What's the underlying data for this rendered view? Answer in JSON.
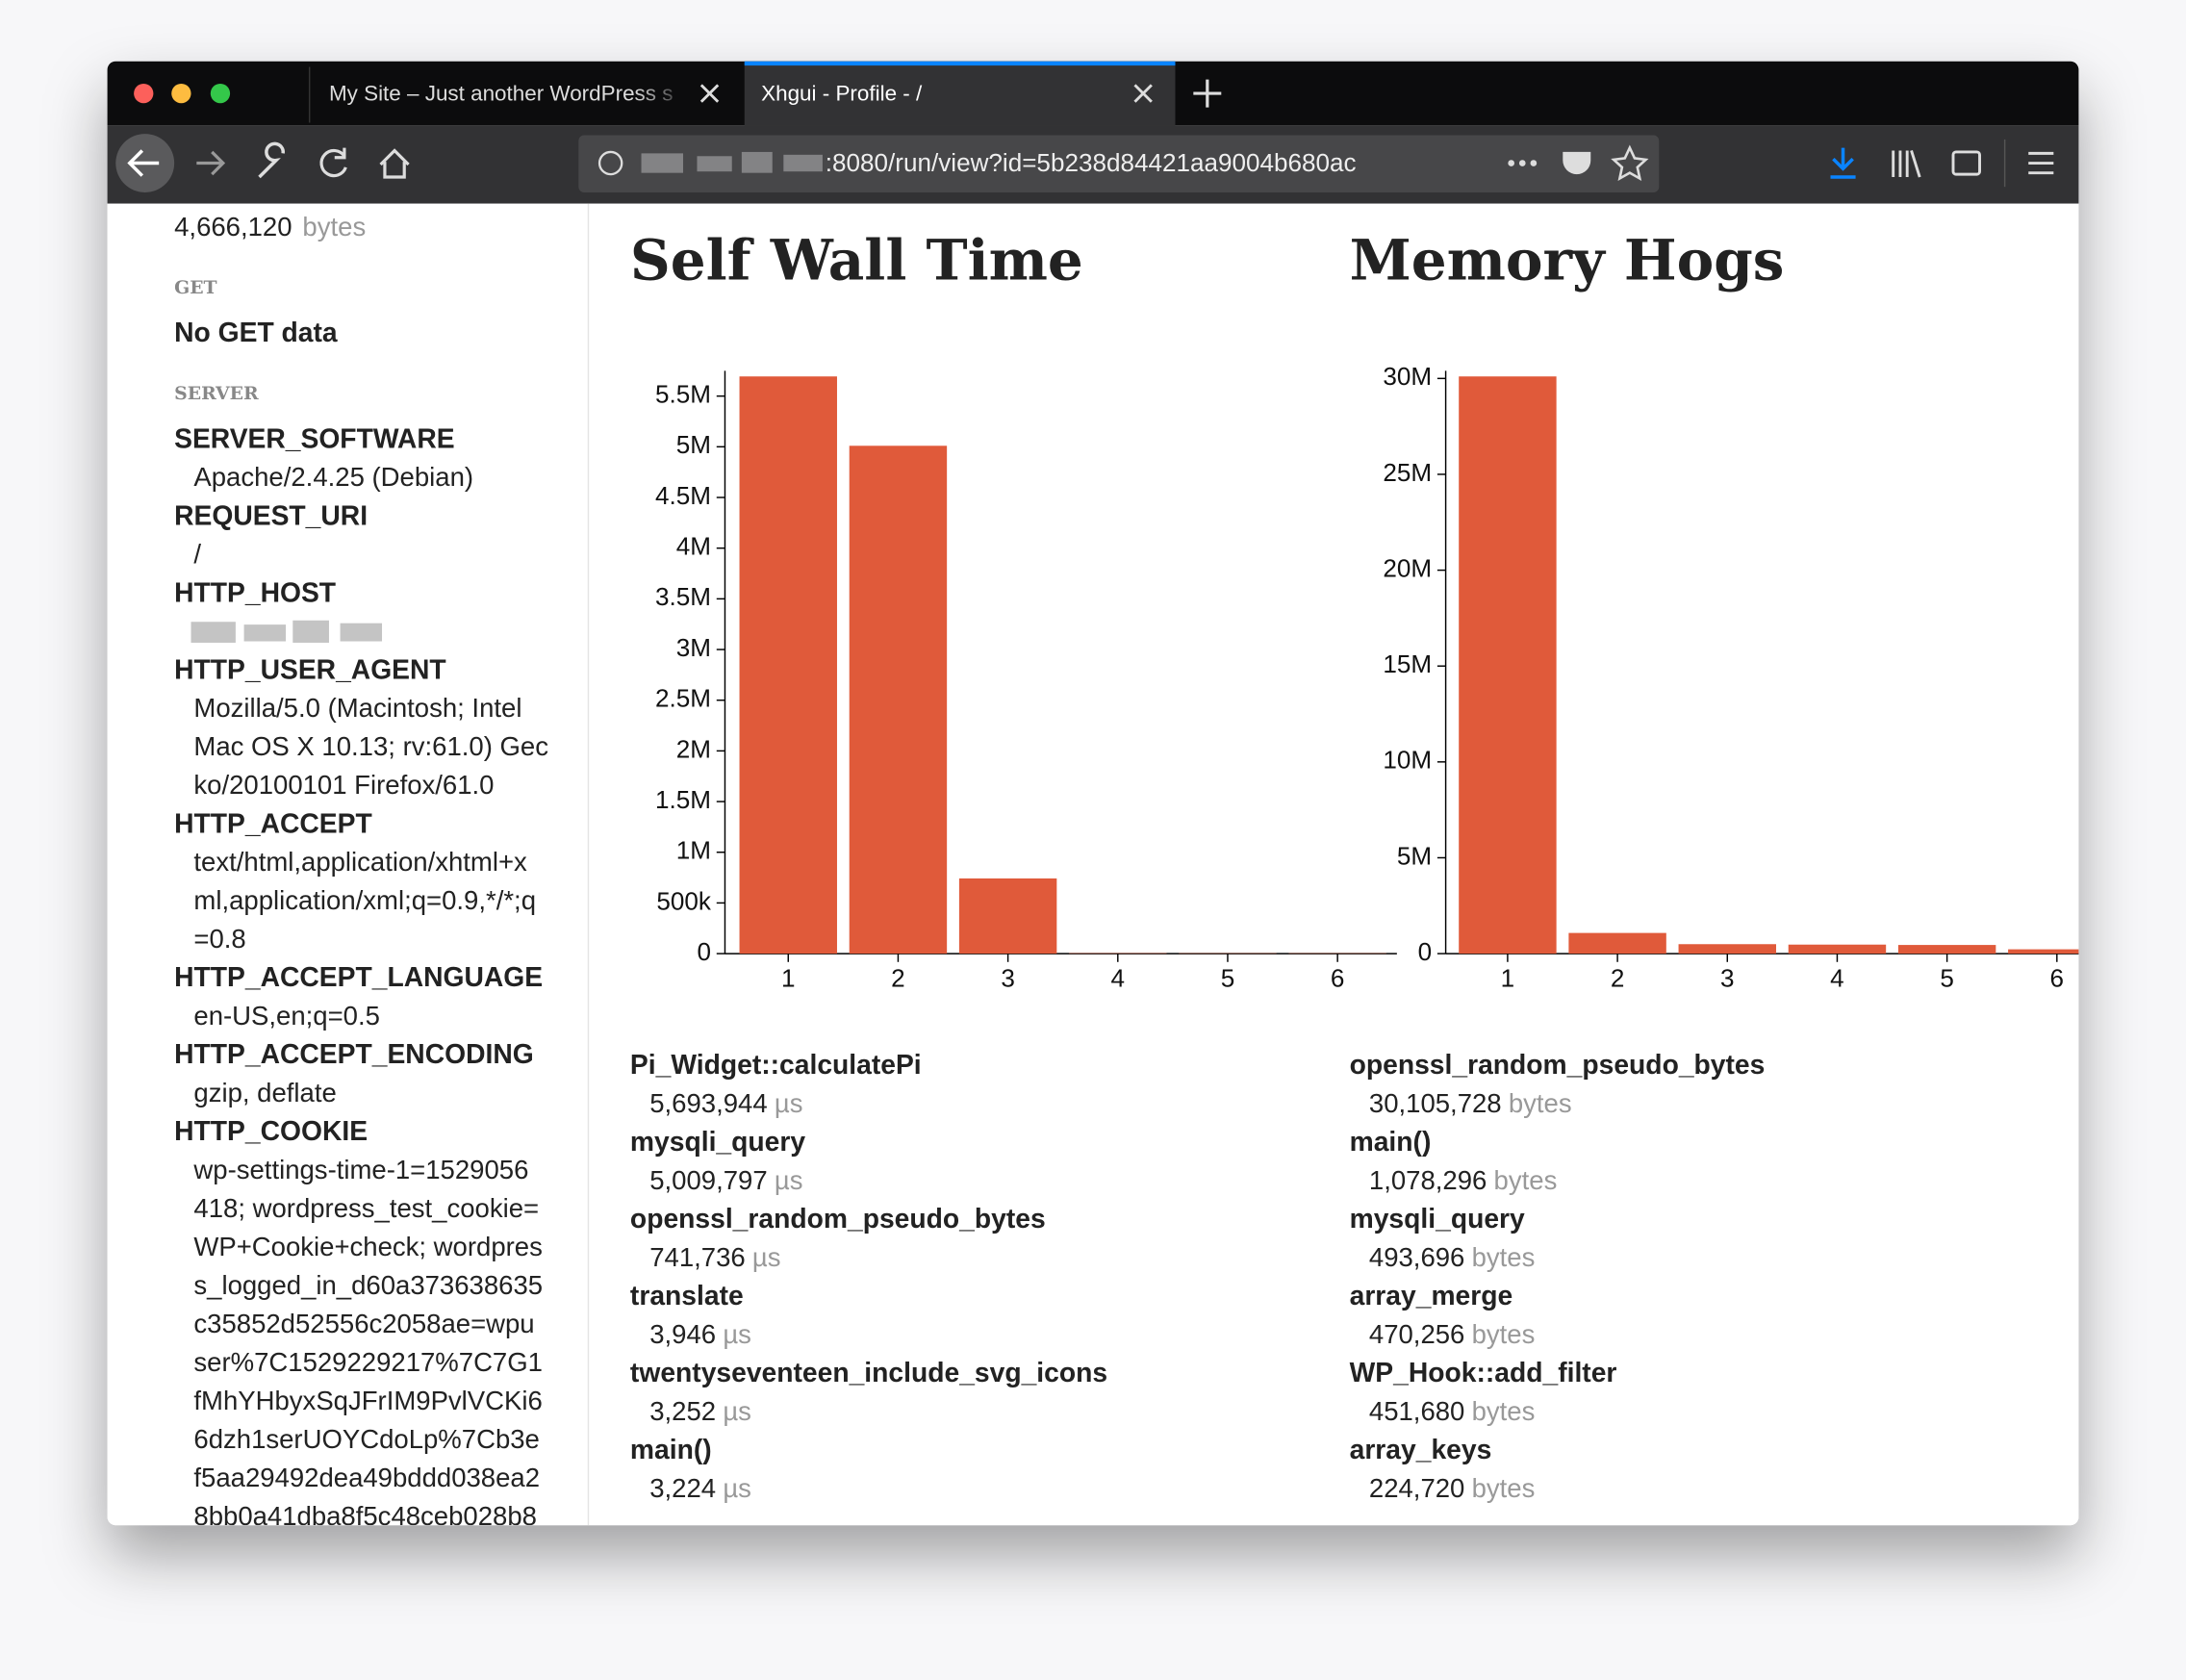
{
  "browser": {
    "tabs": [
      "My Site – Just another WordPress s",
      "Xhgui - Profile - /"
    ],
    "url": ":8080/run/view?id=5b238d84421aa9004b680ac"
  },
  "sidebar": {
    "top_value": "4,666,120",
    "top_unit": "bytes",
    "get_heading": "GET",
    "get_text": "No GET data",
    "server_heading": "SERVER",
    "entries": [
      {
        "key": "SERVER_SOFTWARE",
        "lines": [
          "Apache/2.4.25 (Debian)"
        ]
      },
      {
        "key": "REQUEST_URI",
        "lines": [
          "/"
        ]
      },
      {
        "key": "HTTP_HOST",
        "lines": []
      },
      {
        "key": "HTTP_USER_AGENT",
        "lines": [
          "Mozilla/5.0 (Macintosh; Intel",
          "Mac OS X 10.13; rv:61.0) Gec",
          "ko/20100101 Firefox/61.0"
        ]
      },
      {
        "key": "HTTP_ACCEPT",
        "lines": [
          "text/html,application/xhtml+x",
          "ml,application/xml;q=0.9,*/*;q",
          "=0.8"
        ]
      },
      {
        "key": "HTTP_ACCEPT_LANGUAGE",
        "lines": [
          "en-US,en;q=0.5"
        ]
      },
      {
        "key": "HTTP_ACCEPT_ENCODING",
        "lines": [
          "gzip, deflate"
        ]
      },
      {
        "key": "HTTP_COOKIE",
        "lines": [
          "wp-settings-time-1=1529056",
          "418; wordpress_test_cookie=",
          "WP+Cookie+check; wordpres",
          "s_logged_in_d60a373638635",
          "c35852d52556c2058ae=wpu",
          "ser%7C1529229217%7C7G1",
          "fMhYHbyxSqJFrIM9PvlVCKi6",
          "6dzh1serUOYCdoLp%7Cb3e",
          "f5aa29492dea49bddd038ea2",
          "8bb0a41dba8f5c48ceb028b8"
        ]
      }
    ]
  },
  "chart_data": [
    {
      "type": "bar",
      "title": "Self Wall Time",
      "categories": [
        "1",
        "2",
        "3",
        "4",
        "5",
        "6"
      ],
      "values": [
        5693944,
        5009797,
        741736,
        3946,
        3252,
        3224
      ],
      "color": "#e05a3a",
      "ylim": [
        0,
        5693944
      ],
      "yticks": [
        0,
        {
          "value": 500000,
          "label": "500k"
        },
        {
          "value": 1000000,
          "label": "1M"
        },
        {
          "value": 1500000,
          "label": "1.5M"
        },
        {
          "value": 2000000,
          "label": "2M"
        },
        {
          "value": 2500000,
          "label": "2.5M"
        },
        {
          "value": 3000000,
          "label": "3M"
        },
        {
          "value": 3500000,
          "label": "3.5M"
        },
        {
          "value": 4000000,
          "label": "4M"
        },
        {
          "value": 4500000,
          "label": "4.5M"
        },
        {
          "value": 5000000,
          "label": "5M"
        },
        {
          "value": 5500000,
          "label": "5.5M"
        }
      ]
    },
    {
      "type": "bar",
      "title": "Memory Hogs",
      "categories": [
        "1",
        "2",
        "3",
        "4",
        "5",
        "6"
      ],
      "values": [
        30105728,
        1078296,
        493696,
        470256,
        451680,
        224720
      ],
      "color": "#e05a3a",
      "ylim": [
        0,
        30105728
      ],
      "yticks": [
        0,
        {
          "value": 5000000,
          "label": "5M"
        },
        {
          "value": 10000000,
          "label": "10M"
        },
        {
          "value": 15000000,
          "label": "15M"
        },
        {
          "value": 20000000,
          "label": "20M"
        },
        {
          "value": 25000000,
          "label": "25M"
        },
        {
          "value": 30000000,
          "label": "30M"
        }
      ]
    }
  ],
  "lists": [
    {
      "items": [
        {
          "name": "Pi_Widget::calculatePi",
          "value": "5,693,944",
          "unit": "µs"
        },
        {
          "name": "mysqli_query",
          "value": "5,009,797",
          "unit": "µs"
        },
        {
          "name": "openssl_random_pseudo_bytes",
          "value": "741,736",
          "unit": "µs"
        },
        {
          "name": "translate",
          "value": "3,946",
          "unit": "µs"
        },
        {
          "name": "twentyseventeen_include_svg_icons",
          "value": "3,252",
          "unit": "µs"
        },
        {
          "name": "main()",
          "value": "3,224",
          "unit": "µs"
        }
      ]
    },
    {
      "items": [
        {
          "name": "openssl_random_pseudo_bytes",
          "value": "30,105,728",
          "unit": "bytes"
        },
        {
          "name": "main()",
          "value": "1,078,296",
          "unit": "bytes"
        },
        {
          "name": "mysqli_query",
          "value": "493,696",
          "unit": "bytes"
        },
        {
          "name": "array_merge",
          "value": "470,256",
          "unit": "bytes"
        },
        {
          "name": "WP_Hook::add_filter",
          "value": "451,680",
          "unit": "bytes"
        },
        {
          "name": "array_keys",
          "value": "224,720",
          "unit": "bytes"
        }
      ]
    }
  ]
}
